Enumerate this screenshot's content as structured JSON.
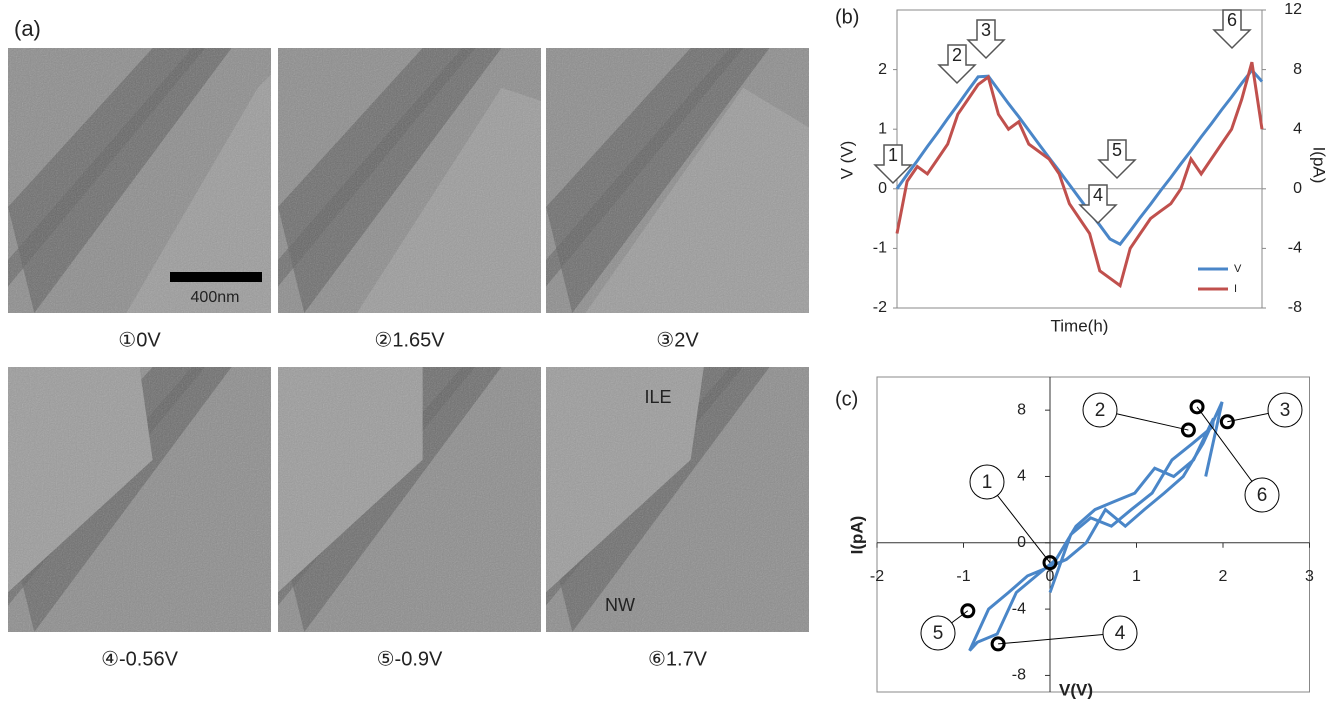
{
  "panel_a": {
    "label": "(a)",
    "scale_bar": "400nm",
    "captions": [
      "①0V",
      "②1.65V",
      "③2V",
      "④-0.56V",
      "⑤-0.9V",
      "⑥1.7V"
    ],
    "annotations": [
      "ILE",
      "NW"
    ]
  },
  "chart_data": [
    {
      "type": "line",
      "label": "(b)",
      "x_label": "Time(h)",
      "y_label": "V (V)",
      "y2_label": "I(pA)",
      "ylim": [
        -2,
        3
      ],
      "yticks": [
        -2,
        -1,
        0,
        1,
        2
      ],
      "y2lim": [
        -8,
        12
      ],
      "y2ticks": [
        -8,
        -4,
        0,
        4,
        8,
        12
      ],
      "legend": "bottom-right",
      "annotations": [
        "1",
        "2",
        "3",
        "4",
        "5",
        "6"
      ],
      "series": [
        {
          "name": "V",
          "color": "#4a86c8",
          "values": [
            0,
            0.24,
            0.47,
            0.71,
            0.94,
            1.18,
            1.41,
            1.65,
            1.88,
            1.89,
            1.66,
            1.43,
            1.21,
            0.98,
            0.75,
            0.52,
            0.3,
            0.07,
            -0.16,
            -0.39,
            -0.61,
            -0.84,
            -0.93,
            -0.71,
            -0.48,
            -0.26,
            -0.03,
            0.19,
            0.42,
            0.64,
            0.87,
            1.09,
            1.32,
            1.54,
            1.77,
            1.99,
            1.8
          ]
        },
        {
          "name": "I",
          "color": "#c0504d",
          "axis": "y2",
          "values": [
            -3,
            0.5,
            1.5,
            1,
            2,
            3,
            5,
            6,
            7,
            7.5,
            5,
            4,
            4.5,
            3,
            2.5,
            2,
            1,
            -1,
            -2,
            -3,
            -5.5,
            -6,
            -6.5,
            -4,
            -3,
            -2,
            -1.5,
            -1,
            0,
            2,
            1,
            2,
            3,
            4,
            6,
            8.5,
            4
          ]
        }
      ]
    },
    {
      "type": "line",
      "label": "(c)",
      "x_label": "V(V)",
      "y_label": "I(pA)",
      "xlim": [
        -2,
        3
      ],
      "xticks": [
        -2,
        -1,
        0,
        1,
        2,
        3
      ],
      "ylim": [
        -9,
        10
      ],
      "yticks": [
        -8,
        -4,
        0,
        4,
        8
      ],
      "series": [
        {
          "color": "#4a86c8",
          "x": [
            0,
            0.24,
            0.47,
            0.71,
            0.94,
            1.18,
            1.41,
            1.65,
            1.88,
            1.89,
            1.66,
            1.43,
            1.21,
            0.98,
            0.75,
            0.52,
            0.3,
            0.07,
            -0.16,
            -0.39,
            -0.61,
            -0.84,
            -0.93,
            -0.71,
            -0.48,
            -0.26,
            -0.03,
            0.19,
            0.42,
            0.64,
            0.87,
            1.09,
            1.32,
            1.54,
            1.77,
            1.99,
            1.8
          ],
          "values": [
            -3,
            0.5,
            1.5,
            1,
            2,
            3,
            5,
            6,
            7,
            7.5,
            5,
            4,
            4.5,
            3,
            2.5,
            2,
            1,
            -1,
            -2,
            -3,
            -5.5,
            -6,
            -6.5,
            -4,
            -3,
            -2,
            -1.5,
            -1,
            0,
            2,
            1,
            2,
            3,
            4,
            6,
            8.5,
            4
          ]
        }
      ],
      "points": {
        "labels": [
          "1",
          "2",
          "3",
          "4",
          "5",
          "6"
        ],
        "x": [
          0,
          1.6,
          2.05,
          -0.6,
          -0.95,
          1.7
        ],
        "values": [
          -1.2,
          6.8,
          7.3,
          -6.1,
          -4.1,
          8.2
        ]
      }
    }
  ]
}
